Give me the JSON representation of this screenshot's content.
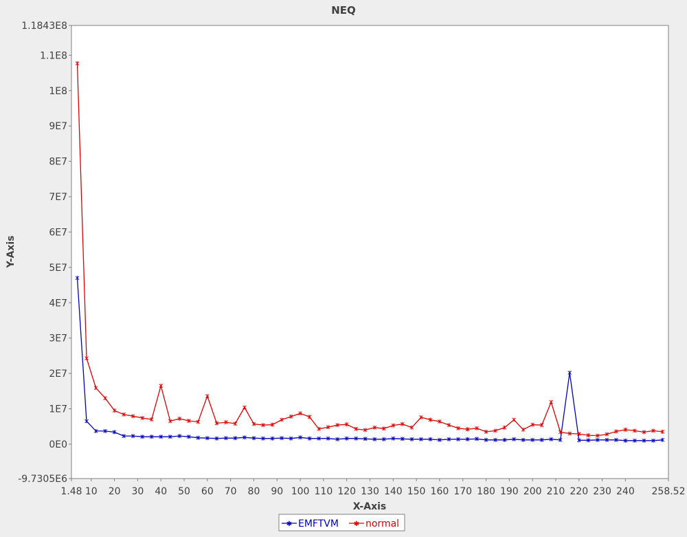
{
  "chart_data": {
    "type": "line",
    "title": "NEQ",
    "xlabel": "X-Axis",
    "ylabel": "Y-Axis",
    "xlim": [
      1.48,
      258.52
    ],
    "ylim": [
      -9730500,
      118430000
    ],
    "x_ticks": [
      {
        "value": 1.48,
        "label": "1.48"
      },
      {
        "value": 10,
        "label": "10"
      },
      {
        "value": 20,
        "label": "20"
      },
      {
        "value": 30,
        "label": "30"
      },
      {
        "value": 40,
        "label": "40"
      },
      {
        "value": 50,
        "label": "50"
      },
      {
        "value": 60,
        "label": "60"
      },
      {
        "value": 70,
        "label": "70"
      },
      {
        "value": 80,
        "label": "80"
      },
      {
        "value": 90,
        "label": "90"
      },
      {
        "value": 100,
        "label": "100"
      },
      {
        "value": 110,
        "label": "110"
      },
      {
        "value": 120,
        "label": "120"
      },
      {
        "value": 130,
        "label": "130"
      },
      {
        "value": 140,
        "label": "140"
      },
      {
        "value": 150,
        "label": "150"
      },
      {
        "value": 160,
        "label": "160"
      },
      {
        "value": 170,
        "label": "170"
      },
      {
        "value": 180,
        "label": "180"
      },
      {
        "value": 190,
        "label": "190"
      },
      {
        "value": 200,
        "label": "200"
      },
      {
        "value": 210,
        "label": "210"
      },
      {
        "value": 220,
        "label": "220"
      },
      {
        "value": 230,
        "label": "230"
      },
      {
        "value": 240,
        "label": "240"
      },
      {
        "value": 258.52,
        "label": "258.52"
      }
    ],
    "y_ticks": [
      {
        "value": -9730500,
        "label": "-9.7305E6"
      },
      {
        "value": 0,
        "label": "0E0"
      },
      {
        "value": 10000000,
        "label": "1E7"
      },
      {
        "value": 20000000,
        "label": "2E7"
      },
      {
        "value": 30000000,
        "label": "3E7"
      },
      {
        "value": 40000000,
        "label": "4E7"
      },
      {
        "value": 50000000,
        "label": "5E7"
      },
      {
        "value": 60000000,
        "label": "6E7"
      },
      {
        "value": 70000000,
        "label": "7E7"
      },
      {
        "value": 80000000,
        "label": "8E7"
      },
      {
        "value": 90000000,
        "label": "9E7"
      },
      {
        "value": 100000000,
        "label": "1E8"
      },
      {
        "value": 110000000,
        "label": "1.1E8"
      },
      {
        "value": 118430000,
        "label": "1.1843E8"
      }
    ],
    "grid": false,
    "legend_position": "bottom-center",
    "x": [
      4,
      8,
      12,
      16,
      20,
      24,
      28,
      32,
      36,
      40,
      44,
      48,
      52,
      56,
      60,
      64,
      68,
      72,
      76,
      80,
      84,
      88,
      92,
      96,
      100,
      104,
      108,
      112,
      116,
      120,
      124,
      128,
      132,
      136,
      140,
      144,
      148,
      152,
      156,
      160,
      164,
      168,
      172,
      176,
      180,
      184,
      188,
      192,
      196,
      200,
      204,
      208,
      212,
      216,
      220,
      224,
      228,
      232,
      236,
      240,
      244,
      248,
      252,
      256
    ],
    "series": [
      {
        "name": "EMFTVM",
        "color": "#0000bb",
        "values": [
          47000000,
          6500000,
          3700000,
          3700000,
          3400000,
          2300000,
          2300000,
          2100000,
          2100000,
          2100000,
          2100000,
          2300000,
          2100000,
          1800000,
          1700000,
          1600000,
          1700000,
          1700000,
          1900000,
          1700000,
          1600000,
          1600000,
          1700000,
          1600000,
          1900000,
          1600000,
          1600000,
          1600000,
          1400000,
          1600000,
          1600000,
          1500000,
          1400000,
          1400000,
          1600000,
          1500000,
          1400000,
          1400000,
          1400000,
          1200000,
          1400000,
          1400000,
          1400000,
          1500000,
          1200000,
          1200000,
          1200000,
          1400000,
          1200000,
          1200000,
          1200000,
          1400000,
          1200000,
          20200000,
          1100000,
          1100000,
          1200000,
          1200000,
          1200000,
          1000000,
          1000000,
          1000000,
          1000000,
          1200000
        ]
      },
      {
        "name": "normal",
        "color": "#dd0000",
        "values": [
          107700000,
          24300000,
          15900000,
          13000000,
          9500000,
          8400000,
          7900000,
          7400000,
          7000000,
          16500000,
          6500000,
          7200000,
          6600000,
          6300000,
          13600000,
          5900000,
          6200000,
          5800000,
          10400000,
          5700000,
          5400000,
          5500000,
          6900000,
          7800000,
          8700000,
          7700000,
          4300000,
          4800000,
          5400000,
          5600000,
          4300000,
          4000000,
          4700000,
          4400000,
          5300000,
          5700000,
          4700000,
          7600000,
          6900000,
          6400000,
          5400000,
          4500000,
          4200000,
          4500000,
          3500000,
          3800000,
          4700000,
          6900000,
          4100000,
          5500000,
          5400000,
          11900000,
          3400000,
          3000000,
          2900000,
          2500000,
          2400000,
          2800000,
          3600000,
          4100000,
          3800000,
          3400000,
          3800000,
          3500000
        ]
      }
    ]
  }
}
